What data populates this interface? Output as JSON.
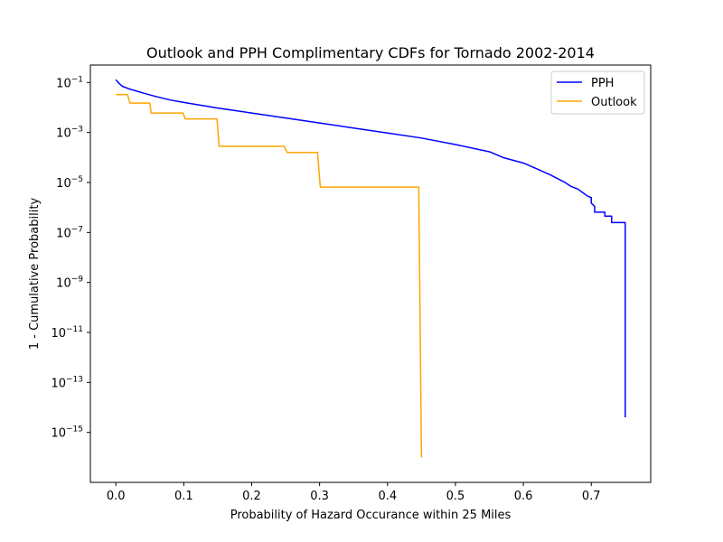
{
  "chart_data": {
    "type": "line",
    "title": "Outlook and PPH Complimentary CDFs for Tornado 2002-2014",
    "xlabel": "Probability of Hazard Occurance within 25 Miles",
    "ylabel": "1 - Cumulative Probability",
    "xlim": [
      -0.0375,
      0.7875
    ],
    "ylim": [
      1e-17,
      0.5
    ],
    "yscale": "log",
    "grid": false,
    "legend_position": "top-right",
    "x_ticks": [
      {
        "value": 0.0,
        "label": "0.0"
      },
      {
        "value": 0.1,
        "label": "0.1"
      },
      {
        "value": 0.2,
        "label": "0.2"
      },
      {
        "value": 0.3,
        "label": "0.3"
      },
      {
        "value": 0.4,
        "label": "0.4"
      },
      {
        "value": 0.5,
        "label": "0.5"
      },
      {
        "value": 0.6,
        "label": "0.6"
      },
      {
        "value": 0.7,
        "label": "0.7"
      }
    ],
    "y_ticks": [
      {
        "exp": -1,
        "base": "10",
        "sup": "−1"
      },
      {
        "exp": -3,
        "base": "10",
        "sup": "−3"
      },
      {
        "exp": -5,
        "base": "10",
        "sup": "−5"
      },
      {
        "exp": -7,
        "base": "10",
        "sup": "−7"
      },
      {
        "exp": -9,
        "base": "10",
        "sup": "−9"
      },
      {
        "exp": -11,
        "base": "10",
        "sup": "−11"
      },
      {
        "exp": -13,
        "base": "10",
        "sup": "−13"
      },
      {
        "exp": -15,
        "base": "10",
        "sup": "−15"
      }
    ],
    "series": [
      {
        "name": "PPH",
        "color": "#0000ff",
        "x": [
          0.0,
          0.005,
          0.01,
          0.02,
          0.04,
          0.06,
          0.08,
          0.1,
          0.15,
          0.2,
          0.25,
          0.3,
          0.35,
          0.4,
          0.45,
          0.5,
          0.55,
          0.57,
          0.6,
          0.62,
          0.64,
          0.66,
          0.67,
          0.68,
          0.69,
          0.695,
          0.7,
          0.7,
          0.705,
          0.705,
          0.71,
          0.72,
          0.72,
          0.73,
          0.73,
          0.74,
          0.75,
          0.75
        ],
        "y": [
          0.13,
          0.09,
          0.07,
          0.055,
          0.038,
          0.027,
          0.02,
          0.016,
          0.0095,
          0.006,
          0.0038,
          0.0024,
          0.0015,
          0.00095,
          0.0006,
          0.00033,
          0.00017,
          0.0001,
          6e-05,
          3.5e-05,
          2e-05,
          1.05e-05,
          7e-06,
          5.5e-06,
          3.5e-06,
          2.8e-06,
          2.5e-06,
          1.5e-06,
          1.1e-06,
          6.5e-07,
          6.5e-07,
          6.5e-07,
          4.5e-07,
          4.5e-07,
          2.5e-07,
          2.5e-07,
          2.5e-07,
          4e-15
        ]
      },
      {
        "name": "Outlook",
        "color": "#ffa500",
        "x": [
          0.0,
          0.017,
          0.021,
          0.05,
          0.052,
          0.099,
          0.102,
          0.149,
          0.152,
          0.248,
          0.252,
          0.297,
          0.301,
          0.446,
          0.45
        ],
        "y": [
          0.033,
          0.033,
          0.015,
          0.015,
          0.006,
          0.006,
          0.0035,
          0.0035,
          0.00028,
          0.00028,
          0.00016,
          0.00016,
          6.5e-06,
          6.5e-06,
          1e-16
        ]
      }
    ]
  }
}
